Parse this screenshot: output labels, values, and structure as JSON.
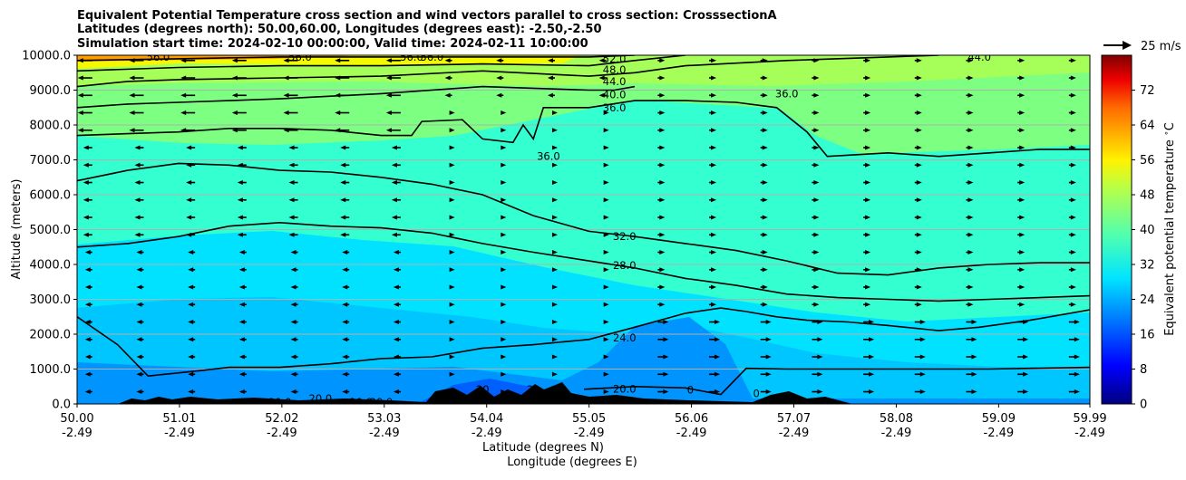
{
  "chart_data": {
    "type": "heatmap",
    "title_lines": [
      "Equivalent Potential Temperature cross section and wind vectors parallel to cross section: CrosssectionA",
      "Latitudes (degrees north): 50.00,60.00, Longitudes (degrees east): -2.50,-2.50",
      "Simulation start time: 2024-02-10 00:00:00, Valid time: 2024-02-11 10:00:00"
    ],
    "xlabel_1": "Latitude (degrees N)",
    "xlabel_2": "Longitude (degrees E)",
    "ylabel": "Altitude (meters)",
    "xlim": [
      50.0,
      59.99
    ],
    "ylim": [
      0,
      10000
    ],
    "x_ticks": [
      {
        "lat": "50.00",
        "lon": "-2.49",
        "v": 50.0
      },
      {
        "lat": "51.01",
        "lon": "-2.49",
        "v": 51.01
      },
      {
        "lat": "52.02",
        "lon": "-2.49",
        "v": 52.02
      },
      {
        "lat": "53.03",
        "lon": "-2.49",
        "v": 53.03
      },
      {
        "lat": "54.04",
        "lon": "-2.49",
        "v": 54.04
      },
      {
        "lat": "55.05",
        "lon": "-2.49",
        "v": 55.05
      },
      {
        "lat": "56.06",
        "lon": "-2.49",
        "v": 56.06
      },
      {
        "lat": "57.07",
        "lon": "-2.49",
        "v": 57.07
      },
      {
        "lat": "58.08",
        "lon": "-2.49",
        "v": 58.08
      },
      {
        "lat": "59.09",
        "lon": "-2.49",
        "v": 59.09
      },
      {
        "lat": "59.99",
        "lon": "-2.49",
        "v": 59.99
      }
    ],
    "y_ticks": [
      "0.0",
      "1000.0",
      "2000.0",
      "3000.0",
      "4000.0",
      "5000.0",
      "6000.0",
      "7000.0",
      "8000.0",
      "9000.0",
      "10000.0"
    ],
    "y_grid": true,
    "colorbar": {
      "label": "Equivalent potential temperature $^\\circ$C",
      "range": [
        0,
        80
      ],
      "ticks": [
        "0",
        "8",
        "16",
        "24",
        "32",
        "40",
        "48",
        "56",
        "64",
        "72"
      ]
    },
    "quiver_key": "25 m/s",
    "contours": [
      {
        "label": "24.0",
        "points": [
          [
            50.0,
            2500
          ],
          [
            50.4,
            1700
          ],
          [
            50.7,
            800
          ],
          [
            51.2,
            950
          ],
          [
            51.5,
            1050
          ],
          [
            52.0,
            1050
          ],
          [
            52.5,
            1150
          ],
          [
            53.0,
            1300
          ],
          [
            53.5,
            1350
          ],
          [
            54.0,
            1600
          ],
          [
            54.5,
            1700
          ],
          [
            55.05,
            1850
          ],
          [
            55.5,
            2200
          ],
          [
            56.0,
            2600
          ],
          [
            56.35,
            2750
          ],
          [
            56.6,
            2650
          ],
          [
            56.9,
            2500
          ],
          [
            57.2,
            2400
          ],
          [
            57.6,
            2350
          ],
          [
            58.0,
            2250
          ],
          [
            58.5,
            2100
          ],
          [
            58.9,
            2200
          ],
          [
            59.4,
            2400
          ],
          [
            59.99,
            2700
          ]
        ]
      },
      {
        "label": "20.0",
        "points": [
          [
            55.0,
            420
          ],
          [
            55.5,
            500
          ],
          [
            56.0,
            460
          ],
          [
            56.35,
            270
          ],
          [
            56.6,
            1020
          ],
          [
            57.0,
            1000
          ],
          [
            58.0,
            1000
          ],
          [
            59.0,
            1000
          ],
          [
            59.99,
            1050
          ]
        ]
      },
      {
        "label": "28.0",
        "points": [
          [
            50.0,
            4500
          ],
          [
            50.5,
            4600
          ],
          [
            51.0,
            4800
          ],
          [
            51.5,
            5100
          ],
          [
            52.0,
            5200
          ],
          [
            52.5,
            5100
          ],
          [
            53.0,
            5050
          ],
          [
            53.5,
            4900
          ],
          [
            54.0,
            4600
          ],
          [
            54.5,
            4350
          ],
          [
            55.05,
            4100
          ],
          [
            55.5,
            3900
          ],
          [
            56.0,
            3600
          ],
          [
            56.5,
            3400
          ],
          [
            57.0,
            3150
          ],
          [
            57.5,
            3050
          ],
          [
            58.0,
            3000
          ],
          [
            58.5,
            2950
          ],
          [
            59.0,
            3000
          ],
          [
            59.5,
            3050
          ],
          [
            59.99,
            3100
          ]
        ]
      },
      {
        "label": "32.0",
        "points": [
          [
            50.0,
            6400
          ],
          [
            50.5,
            6700
          ],
          [
            51.0,
            6900
          ],
          [
            51.5,
            6850
          ],
          [
            52.0,
            6700
          ],
          [
            52.5,
            6650
          ],
          [
            53.0,
            6500
          ],
          [
            53.5,
            6300
          ],
          [
            54.0,
            6000
          ],
          [
            54.5,
            5400
          ],
          [
            55.05,
            4950
          ],
          [
            55.5,
            4800
          ],
          [
            56.0,
            4600
          ],
          [
            56.5,
            4400
          ],
          [
            57.0,
            4100
          ],
          [
            57.5,
            3750
          ],
          [
            58.0,
            3700
          ],
          [
            58.5,
            3900
          ],
          [
            59.0,
            4000
          ],
          [
            59.5,
            4050
          ],
          [
            59.99,
            4050
          ]
        ]
      },
      {
        "label": "36.0",
        "points": [
          [
            50.0,
            7700
          ],
          [
            50.5,
            7750
          ],
          [
            51.0,
            7800
          ],
          [
            51.5,
            7900
          ],
          [
            52.0,
            7900
          ],
          [
            52.5,
            7850
          ],
          [
            53.0,
            7700
          ],
          [
            53.3,
            7700
          ],
          [
            53.4,
            8100
          ],
          [
            53.8,
            8150
          ],
          [
            54.0,
            7600
          ],
          [
            54.3,
            7500
          ],
          [
            54.4,
            8000
          ],
          [
            54.5,
            7600
          ],
          [
            54.6,
            8500
          ],
          [
            55.05,
            8500
          ],
          [
            55.5,
            8700
          ],
          [
            56.0,
            8700
          ],
          [
            56.5,
            8650
          ],
          [
            56.9,
            8500
          ],
          [
            57.2,
            7800
          ],
          [
            57.4,
            7100
          ],
          [
            58.0,
            7200
          ],
          [
            58.5,
            7100
          ],
          [
            59.0,
            7200
          ],
          [
            59.5,
            7300
          ],
          [
            59.99,
            7300
          ]
        ]
      },
      {
        "label": "40.0",
        "points": [
          [
            50.0,
            8500
          ],
          [
            50.5,
            8600
          ],
          [
            51.0,
            8650
          ],
          [
            51.5,
            8700
          ],
          [
            52.0,
            8750
          ],
          [
            53.0,
            8900
          ],
          [
            54.0,
            9100
          ],
          [
            55.05,
            9000
          ],
          [
            55.3,
            9000
          ],
          [
            55.5,
            9100
          ]
        ]
      },
      {
        "label": "44.0",
        "points": [
          [
            50.0,
            9100
          ],
          [
            50.5,
            9250
          ],
          [
            51.0,
            9300
          ],
          [
            52.0,
            9350
          ],
          [
            53.0,
            9400
          ],
          [
            54.0,
            9550
          ],
          [
            55.05,
            9400
          ],
          [
            55.5,
            9500
          ],
          [
            56.0,
            9700
          ],
          [
            57.0,
            9850
          ],
          [
            58.0,
            9950
          ],
          [
            58.5,
            10000
          ]
        ]
      },
      {
        "label": "48.0",
        "points": [
          [
            50.0,
            9550
          ],
          [
            51.0,
            9650
          ],
          [
            52.0,
            9700
          ],
          [
            53.0,
            9700
          ],
          [
            54.0,
            9750
          ],
          [
            55.05,
            9700
          ],
          [
            55.5,
            9850
          ],
          [
            56.0,
            10000
          ]
        ]
      },
      {
        "label": "52.0",
        "points": [
          [
            50.0,
            9850
          ],
          [
            51.0,
            9900
          ],
          [
            52.0,
            9950
          ],
          [
            53.0,
            9950
          ],
          [
            54.0,
            9950
          ],
          [
            55.05,
            9950
          ],
          [
            55.5,
            10000
          ]
        ]
      }
    ],
    "contour_labels": [
      {
        "text": "52.0",
        "x": 55.3,
        "y": 9900
      },
      {
        "text": "48.0",
        "x": 55.3,
        "y": 9580
      },
      {
        "text": "44.0",
        "x": 55.3,
        "y": 9250
      },
      {
        "text": "40.0",
        "x": 55.3,
        "y": 8870
      },
      {
        "text": "36.0",
        "x": 55.3,
        "y": 8500
      },
      {
        "text": "36.0",
        "x": 54.65,
        "y": 7100
      },
      {
        "text": "36.0",
        "x": 57.0,
        "y": 8900
      },
      {
        "text": "44.0",
        "x": 58.9,
        "y": 9950
      },
      {
        "text": "56.0",
        "x": 50.8,
        "y": 9950
      },
      {
        "text": "56.0",
        "x": 52.2,
        "y": 9950
      },
      {
        "text": "56.0",
        "x": 53.3,
        "y": 9950
      },
      {
        "text": "56.0",
        "x": 53.5,
        "y": 9950
      },
      {
        "text": "32.0",
        "x": 55.4,
        "y": 4800
      },
      {
        "text": "28.0",
        "x": 55.4,
        "y": 3980
      },
      {
        "text": "24.0",
        "x": 55.4,
        "y": 1900
      },
      {
        "text": "20.0",
        "x": 55.4,
        "y": 430
      },
      {
        "text": "20.0",
        "x": 52.0,
        "y": 50
      },
      {
        "text": "20.0",
        "x": 52.4,
        "y": 150
      },
      {
        "text": "20.0",
        "x": 52.8,
        "y": 50
      },
      {
        "text": "20.0",
        "x": 53.0,
        "y": 50
      },
      {
        "text": "20",
        "x": 54.0,
        "y": 420
      },
      {
        "text": "20",
        "x": 54.5,
        "y": 420
      },
      {
        "text": "0",
        "x": 56.05,
        "y": 400
      },
      {
        "text": "0",
        "x": 56.7,
        "y": 300
      }
    ]
  }
}
